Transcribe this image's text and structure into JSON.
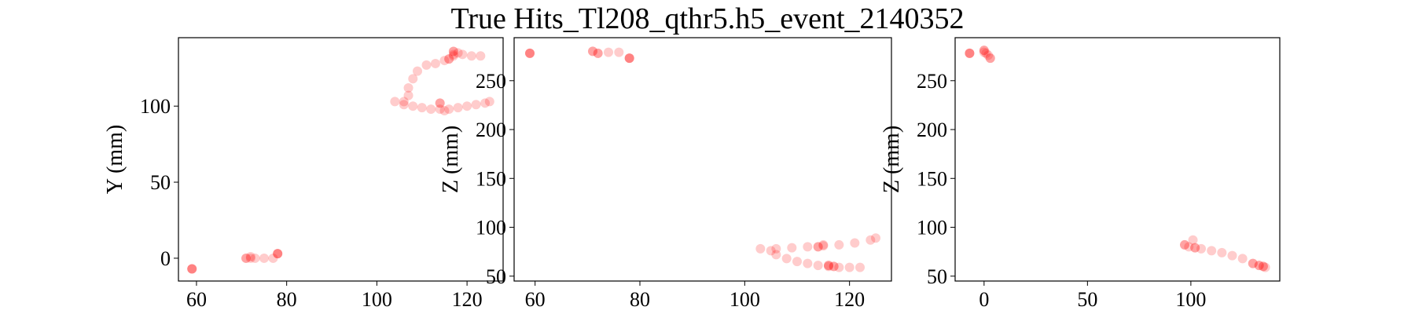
{
  "title": "True Hits_Tl208_qthr5.h5_event_2140352",
  "chart_data": [
    {
      "type": "scatter",
      "ylabel": "Y (mm)",
      "color": "#ff0000",
      "alpha": 0.2,
      "xlim": [
        56,
        128
      ],
      "ylim": [
        -15,
        145
      ],
      "xticks": [
        60,
        80,
        100,
        120
      ],
      "yticks": [
        0,
        50,
        100
      ],
      "x": [
        59,
        59,
        59,
        71,
        71,
        72,
        72,
        73,
        75,
        77,
        78,
        78,
        78,
        104,
        106,
        108,
        110,
        112,
        114,
        116,
        118,
        120,
        122,
        124,
        125,
        106,
        107,
        107,
        108,
        109,
        111,
        113,
        115,
        117,
        119,
        121,
        123,
        114,
        114,
        115,
        116,
        116,
        117,
        117,
        117,
        118
      ],
      "values": [
        -7,
        -7,
        -7,
        0,
        0,
        1,
        0,
        0,
        0,
        0,
        3,
        3,
        3,
        103,
        101,
        100,
        99,
        98,
        98,
        98,
        99,
        100,
        101,
        102,
        103,
        103,
        107,
        112,
        118,
        123,
        127,
        128,
        130,
        133,
        134,
        133,
        133,
        102,
        102,
        97,
        131,
        131,
        134,
        136,
        136,
        135
      ]
    },
    {
      "type": "scatter",
      "ylabel": "Z (mm)",
      "color": "#ff0000",
      "alpha": 0.2,
      "xlim": [
        56,
        128
      ],
      "ylim": [
        45,
        294
      ],
      "xticks": [
        60,
        80,
        100,
        120
      ],
      "yticks": [
        50,
        100,
        150,
        200,
        250
      ],
      "x": [
        59,
        59,
        59,
        71,
        71,
        72,
        72,
        74,
        76,
        78,
        78,
        78,
        103,
        106,
        109,
        112,
        115,
        118,
        121,
        124,
        125,
        105,
        106,
        108,
        110,
        112,
        114,
        116,
        118,
        120,
        122,
        114,
        114,
        115,
        116,
        116,
        117,
        117
      ],
      "values": [
        278,
        278,
        278,
        280,
        280,
        278,
        278,
        279,
        279,
        273,
        273,
        273,
        78,
        78,
        79,
        80,
        81,
        82,
        84,
        87,
        89,
        76,
        72,
        68,
        65,
        63,
        61,
        60,
        59,
        59,
        59,
        80,
        80,
        82,
        61,
        61,
        60,
        60
      ]
    },
    {
      "type": "scatter",
      "ylabel": "Z (mm)",
      "color": "#ff0000",
      "alpha": 0.2,
      "xlim": [
        -14,
        143
      ],
      "ylim": [
        45,
        294
      ],
      "xticks": [
        0,
        50,
        100
      ],
      "yticks": [
        50,
        100,
        150,
        200,
        250
      ],
      "x": [
        -7,
        -7,
        -7,
        0,
        0,
        0,
        1,
        2,
        3,
        3,
        97,
        97,
        99,
        101,
        102,
        102,
        105,
        110,
        115,
        120,
        125,
        130,
        130,
        133,
        133,
        135,
        135,
        136
      ],
      "values": [
        278,
        278,
        278,
        281,
        281,
        279,
        278,
        276,
        273,
        273,
        82,
        82,
        80,
        87,
        79,
        79,
        78,
        76,
        74,
        71,
        68,
        63,
        63,
        61,
        61,
        60,
        60,
        59
      ]
    }
  ]
}
